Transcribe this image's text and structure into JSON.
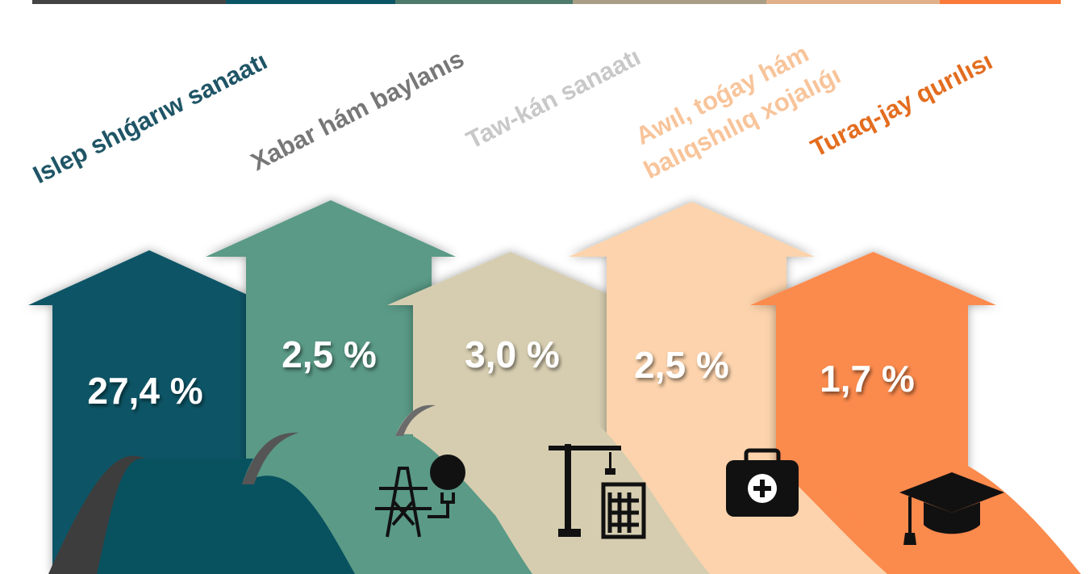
{
  "items": [
    {
      "label_lines": [
        "Islep shıǵarıw sanaatı"
      ],
      "value": "27,4 %"
    },
    {
      "label_lines": [
        "Xabar hám baylanıs"
      ],
      "value": "2,5 %"
    },
    {
      "label_lines": [
        "Taw-kán sanaatı"
      ],
      "value": "3,0 %"
    },
    {
      "label_lines": [
        "Awıl, toǵay hám",
        "balıqshılıq xojalıǵı"
      ],
      "value": "2,5 %"
    },
    {
      "label_lines": [
        "Turaq-jay qurılısı"
      ],
      "value": "1,7 %"
    }
  ]
}
